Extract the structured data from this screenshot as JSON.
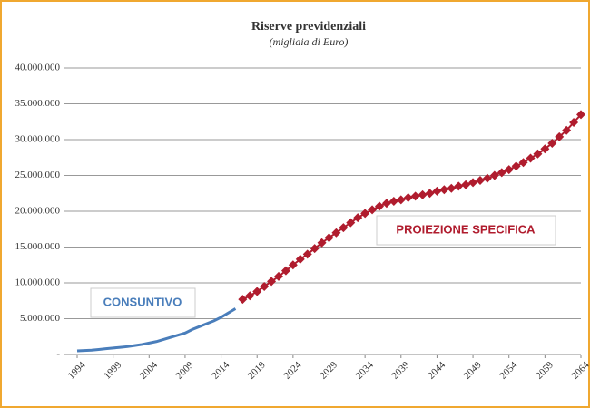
{
  "chart_data": {
    "type": "line",
    "title": "Riserve previdenziali",
    "subtitle": "(migliaia di Euro)",
    "annotations": [
      "CONSUNTIVO",
      "PROIEZIONE SPECIFICA"
    ],
    "xlim": [
      1994,
      2064
    ],
    "xticks": [
      1994,
      1999,
      2004,
      2009,
      2014,
      2019,
      2024,
      2029,
      2034,
      2039,
      2044,
      2049,
      2054,
      2059,
      2064
    ],
    "ylim": [
      0,
      40000000
    ],
    "yticks": [
      {
        "value": 0,
        "label": "-"
      },
      {
        "value": 5000000,
        "label": "5.000.000"
      },
      {
        "value": 10000000,
        "label": "10.000.000"
      },
      {
        "value": 15000000,
        "label": "15.000.000"
      },
      {
        "value": 20000000,
        "label": "20.000.000"
      },
      {
        "value": 25000000,
        "label": "25.000.000"
      },
      {
        "value": 30000000,
        "label": "30.000.000"
      },
      {
        "value": 35000000,
        "label": "35.000.000"
      },
      {
        "value": 40000000,
        "label": "40.000.000"
      }
    ],
    "grid": true,
    "series": [
      {
        "color": "#4a7ebb",
        "marker": "none",
        "x": [
          1994,
          1995,
          1996,
          1997,
          1998,
          1999,
          2000,
          2001,
          2002,
          2003,
          2004,
          2005,
          2006,
          2007,
          2008,
          2009,
          2010,
          2011,
          2012,
          2013,
          2014,
          2015,
          2016
        ],
        "values": [
          500000,
          550000,
          600000,
          700000,
          800000,
          900000,
          1000000,
          1100000,
          1250000,
          1400000,
          1600000,
          1800000,
          2100000,
          2400000,
          2700000,
          3000000,
          3500000,
          3900000,
          4300000,
          4700000,
          5200000,
          5800000,
          6400000
        ]
      },
      {
        "color": "#b01c2e",
        "marker": "diamond",
        "x": [
          2017,
          2018,
          2019,
          2020,
          2021,
          2022,
          2023,
          2024,
          2025,
          2026,
          2027,
          2028,
          2029,
          2030,
          2031,
          2032,
          2033,
          2034,
          2035,
          2036,
          2037,
          2038,
          2039,
          2040,
          2041,
          2042,
          2043,
          2044,
          2045,
          2046,
          2047,
          2048,
          2049,
          2050,
          2051,
          2052,
          2053,
          2054,
          2055,
          2056,
          2057,
          2058,
          2059,
          2060,
          2061,
          2062,
          2063,
          2064
        ],
        "values": [
          7700000,
          8200000,
          8800000,
          9500000,
          10200000,
          10900000,
          11700000,
          12500000,
          13300000,
          14000000,
          14800000,
          15600000,
          16300000,
          17000000,
          17700000,
          18400000,
          19100000,
          19700000,
          20200000,
          20700000,
          21100000,
          21400000,
          21600000,
          21900000,
          22100000,
          22300000,
          22500000,
          22800000,
          23000000,
          23200000,
          23500000,
          23700000,
          24000000,
          24300000,
          24600000,
          25000000,
          25400000,
          25800000,
          26300000,
          26800000,
          27400000,
          28000000,
          28700000,
          29500000,
          30400000,
          31300000,
          32400000,
          33500000
        ]
      }
    ]
  }
}
